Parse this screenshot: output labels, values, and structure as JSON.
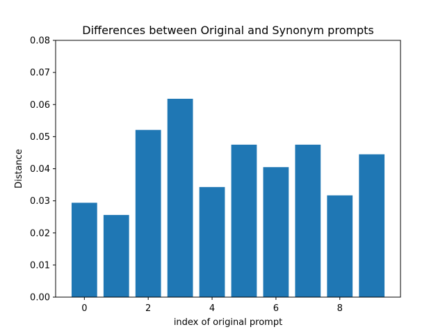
{
  "chart_data": {
    "type": "bar",
    "title": "Differences between Original and Synonym prompts",
    "xlabel": "index of original prompt",
    "ylabel": "Distance",
    "categories": [
      0,
      1,
      2,
      3,
      4,
      5,
      6,
      7,
      8,
      9
    ],
    "values": [
      0.0294,
      0.0256,
      0.0521,
      0.0618,
      0.0343,
      0.0475,
      0.0405,
      0.0475,
      0.0317,
      0.0445
    ],
    "xlim": [
      -0.9,
      9.9
    ],
    "ylim": [
      0,
      0.08
    ],
    "x_ticks": [
      0,
      2,
      4,
      6,
      8
    ],
    "x_tick_labels": [
      "0",
      "2",
      "4",
      "6",
      "8"
    ],
    "y_ticks": [
      0,
      0.01,
      0.02,
      0.03,
      0.04,
      0.05,
      0.06,
      0.07,
      0.08
    ],
    "y_tick_labels": [
      "0.00",
      "0.01",
      "0.02",
      "0.03",
      "0.04",
      "0.05",
      "0.06",
      "0.07",
      "0.08"
    ],
    "bar_width": 0.8,
    "bar_color": "#1f77b4",
    "grid": false,
    "legend": "none"
  }
}
